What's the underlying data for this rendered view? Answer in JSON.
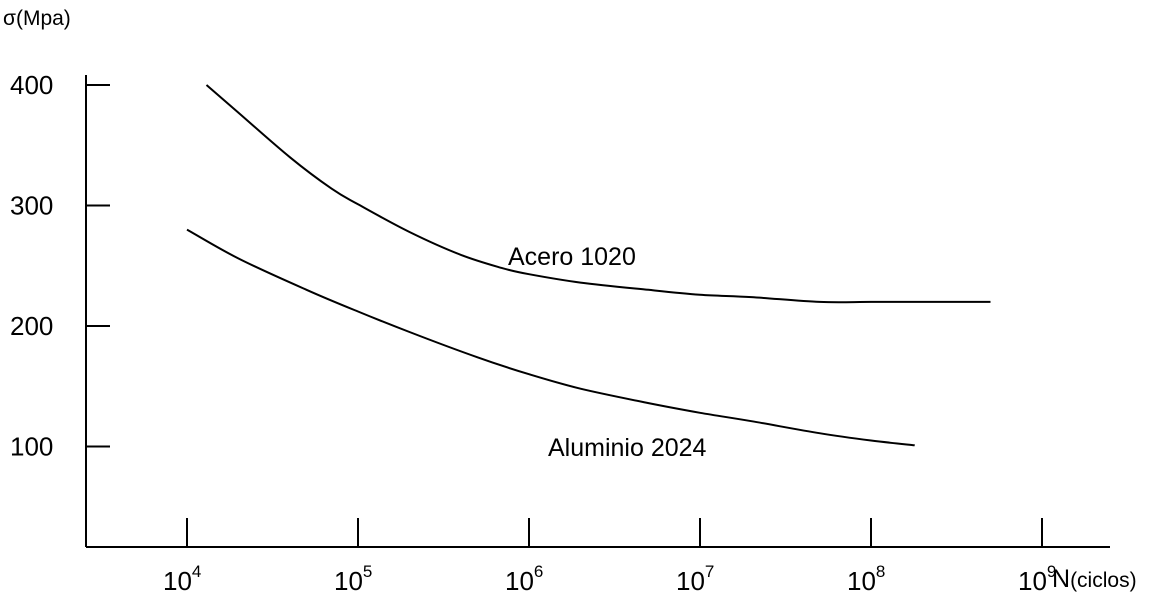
{
  "chart_data": {
    "type": "line",
    "title": "",
    "ylabel": "σ(Mpa)",
    "xlabel_main": "N",
    "xlabel_unit": "(ciclos)",
    "x_scale": "log",
    "ylim": [
      0,
      400
    ],
    "xlim": [
      3000,
      3000000000
    ],
    "grid": false,
    "y_ticks": [
      {
        "value": 400,
        "label": "400"
      },
      {
        "value": 300,
        "label": "300"
      },
      {
        "value": 200,
        "label": "200"
      },
      {
        "value": 100,
        "label": "100"
      }
    ],
    "x_ticks": [
      {
        "value": 10000,
        "base": "10",
        "exp": "4"
      },
      {
        "value": 100000,
        "base": "10",
        "exp": "5"
      },
      {
        "value": 1000000,
        "base": "10",
        "exp": "6"
      },
      {
        "value": 10000000,
        "base": "10",
        "exp": "7"
      },
      {
        "value": 100000000,
        "base": "10",
        "exp": "8"
      },
      {
        "value": 1000000000,
        "base": "10",
        "exp": "9"
      }
    ],
    "series": [
      {
        "name": "Acero 1020",
        "color": "#000000",
        "points": [
          [
            13000,
            400
          ],
          [
            20000,
            377
          ],
          [
            40000,
            340
          ],
          [
            70000,
            314
          ],
          [
            100000,
            301
          ],
          [
            200000,
            278
          ],
          [
            400000,
            259
          ],
          [
            700000,
            248
          ],
          [
            1000000,
            243
          ],
          [
            2000000,
            236
          ],
          [
            5000000,
            230
          ],
          [
            10000000,
            226
          ],
          [
            20000000,
            224
          ],
          [
            50000000,
            220
          ],
          [
            100000000,
            220
          ],
          [
            200000000,
            220
          ],
          [
            500000000,
            220
          ]
        ]
      },
      {
        "name": "Aluminio 2024",
        "color": "#000000",
        "points": [
          [
            10000,
            280
          ],
          [
            20000,
            256
          ],
          [
            50000,
            230
          ],
          [
            100000,
            212
          ],
          [
            200000,
            195
          ],
          [
            500000,
            174
          ],
          [
            1000000,
            160
          ],
          [
            2000000,
            148
          ],
          [
            5000000,
            136
          ],
          [
            10000000,
            128
          ],
          [
            20000000,
            121
          ],
          [
            50000000,
            111
          ],
          [
            100000000,
            105
          ],
          [
            180000000,
            101
          ]
        ]
      }
    ]
  }
}
